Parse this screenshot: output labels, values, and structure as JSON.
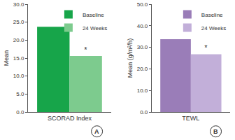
{
  "chart_data": [
    {
      "type": "bar",
      "label": "A",
      "y_label": "Mean",
      "categories": [
        "SCORAD Index"
      ],
      "series": [
        {
          "name": "Baseline",
          "color": "#17a54a",
          "values": [
            23.7
          ]
        },
        {
          "name": "24 Weeks",
          "color": "#7dcb8e",
          "values": [
            15.6
          ]
        }
      ],
      "annotations": [
        {
          "text": "*",
          "series": "24 Weeks",
          "category": "SCORAD Index"
        }
      ],
      "ylim": [
        0,
        30
      ],
      "yticks": [
        {
          "value": 0,
          "label": "0.0"
        },
        {
          "value": 5,
          "label": "5.0"
        },
        {
          "value": 10,
          "label": "10.0"
        },
        {
          "value": 15,
          "label": "15.0"
        },
        {
          "value": 20,
          "label": "20.0"
        },
        {
          "value": 25,
          "label": "25.0"
        },
        {
          "value": 30,
          "label": "30.0"
        }
      ],
      "grid": false,
      "legend": "upper right"
    },
    {
      "type": "bar",
      "label": "B",
      "y_label": "Mean (g/m²/h)",
      "categories": [
        "TEWL"
      ],
      "series": [
        {
          "name": "Baseline",
          "color": "#9a7db8",
          "values": [
            33.8
          ]
        },
        {
          "name": "24 Weeks",
          "color": "#c2afd9",
          "values": [
            26.8
          ]
        }
      ],
      "annotations": [
        {
          "text": "*",
          "series": "24 Weeks",
          "category": "TEWL"
        }
      ],
      "ylim": [
        0,
        50
      ],
      "yticks": [
        {
          "value": 0,
          "label": "0.0"
        },
        {
          "value": 10,
          "label": "10.0"
        },
        {
          "value": 20,
          "label": "20.0"
        },
        {
          "value": 30,
          "label": "30.0"
        },
        {
          "value": 40,
          "label": "40.0"
        },
        {
          "value": 50,
          "label": "50.0"
        }
      ],
      "grid": false,
      "legend": "upper right"
    }
  ]
}
